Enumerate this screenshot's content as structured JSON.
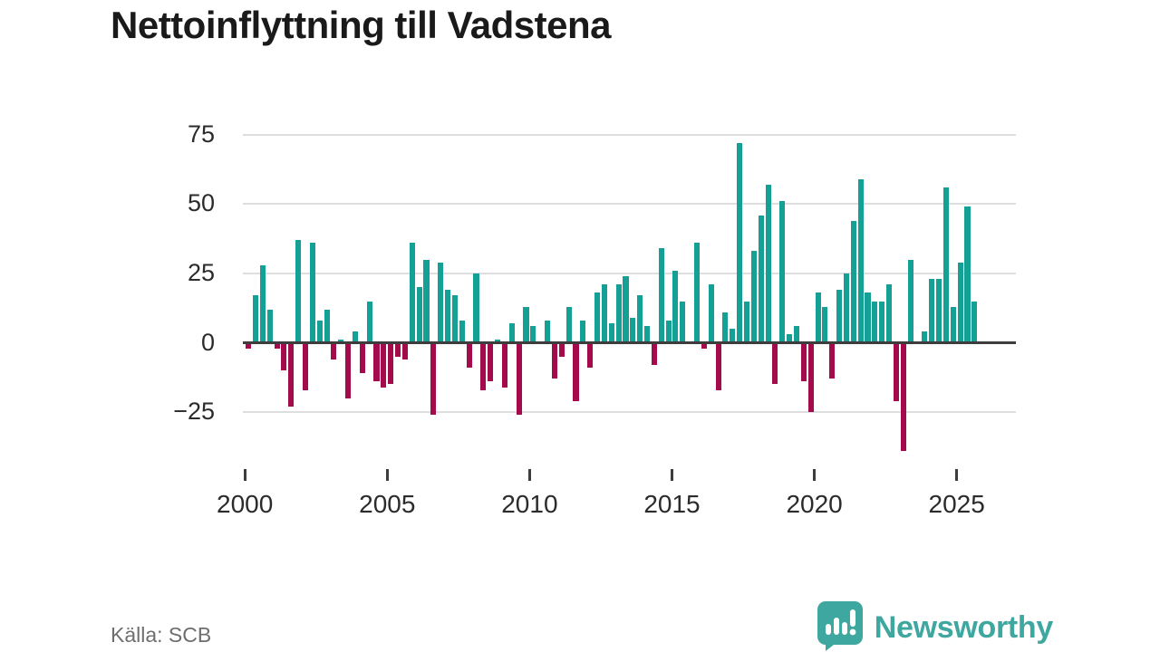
{
  "title": "Nettoinflyttning till Vadstena",
  "source": "Källa: SCB",
  "logo": {
    "text": "Newsworthy",
    "color": "#3EA79F"
  },
  "chart_data": {
    "type": "bar",
    "title": "Nettoinflyttning till Vadstena",
    "x_unit": "quarter",
    "start": "2000-Q1",
    "end": "2025-Q3",
    "values": [
      -2,
      17,
      28,
      12,
      -2,
      -10,
      -23,
      37,
      -17,
      36,
      8,
      12,
      -6,
      1,
      -20,
      4,
      -11,
      15,
      -14,
      -16,
      -15,
      -5,
      -6,
      36,
      20,
      30,
      -26,
      29,
      19,
      17,
      8,
      -9,
      25,
      -17,
      -14,
      1,
      -16,
      7,
      -26,
      13,
      6,
      0,
      8,
      -13,
      -5,
      13,
      -21,
      8,
      -9,
      18,
      21,
      7,
      21,
      24,
      9,
      17,
      6,
      -8,
      34,
      8,
      26,
      15,
      0,
      36,
      -2,
      21,
      -17,
      11,
      5,
      72,
      15,
      33,
      46,
      57,
      -15,
      51,
      3,
      6,
      -14,
      -25,
      18,
      13,
      -13,
      19,
      25,
      44,
      59,
      18,
      15,
      15,
      21,
      -21,
      -39,
      30,
      0,
      4,
      23,
      23,
      56,
      13,
      29,
      49,
      15
    ],
    "x_tick_years": [
      2000,
      2005,
      2010,
      2015,
      2020,
      2025
    ],
    "x_tick_labels": [
      "2000",
      "2005",
      "2010",
      "2015",
      "2020",
      "2025"
    ],
    "y_ticks": [
      75,
      50,
      25,
      0,
      -25
    ],
    "y_tick_labels": [
      "75",
      "50",
      "25",
      "0",
      "−25"
    ],
    "ylim": [
      -41,
      80
    ],
    "grid": true,
    "legend": "none",
    "positive_color": "#14A095",
    "negative_color": "#A30B4D"
  }
}
